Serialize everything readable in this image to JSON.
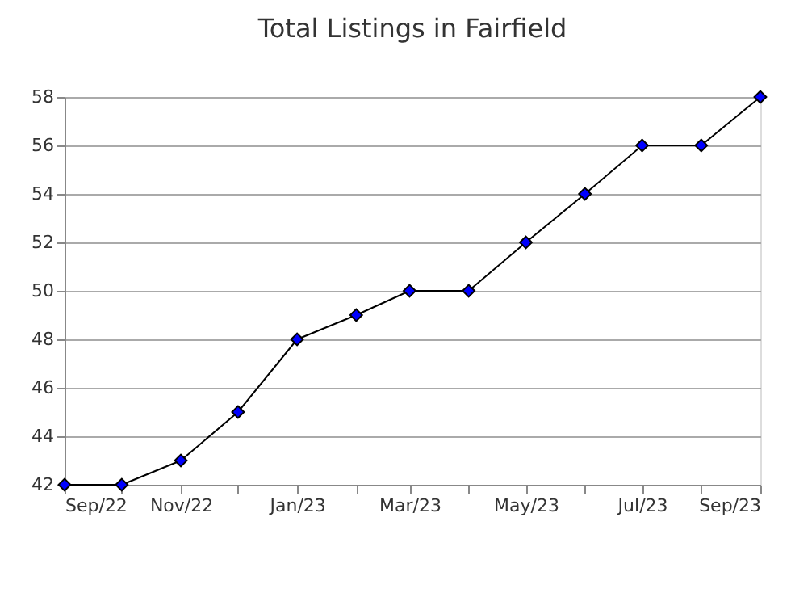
{
  "chart_data": {
    "type": "line",
    "title": "Total Listings in Fairfield",
    "x": [
      "2022-09",
      "2022-10",
      "2022-11",
      "2022-12",
      "2023-01",
      "2023-02",
      "2023-03",
      "2023-04",
      "2023-05",
      "2023-06",
      "2023-07",
      "2023-08",
      "2023-09"
    ],
    "series": [
      {
        "color": "#0000ff",
        "values": [
          42,
          42,
          43,
          45,
          48,
          49,
          50,
          50,
          52,
          54,
          56,
          56,
          58
        ]
      }
    ],
    "xlim": [
      "2022-09",
      "2023-09"
    ],
    "xticks": [
      {
        "value": "2022-09",
        "label": "Sep/22"
      },
      {
        "value": "2022-10",
        "label": null
      },
      {
        "value": "2022-11",
        "label": "Nov/22"
      },
      {
        "value": "2022-12",
        "label": null
      },
      {
        "value": "2023-01",
        "label": "Jan/23"
      },
      {
        "value": "2023-02",
        "label": null
      },
      {
        "value": "2023-03",
        "label": "Mar/23"
      },
      {
        "value": "2023-04",
        "label": null
      },
      {
        "value": "2023-05",
        "label": "May/23"
      },
      {
        "value": "2023-06",
        "label": null
      },
      {
        "value": "2023-07",
        "label": "Jul/23"
      },
      {
        "value": "2023-08",
        "label": null
      },
      {
        "value": "2023-09",
        "label": "Sep/23"
      }
    ],
    "ylim": [
      42,
      58
    ],
    "yticks": [
      42,
      44,
      46,
      48,
      50,
      52,
      54,
      56,
      58
    ],
    "grid": "y",
    "marker": "diamond",
    "line_style": "solid"
  }
}
